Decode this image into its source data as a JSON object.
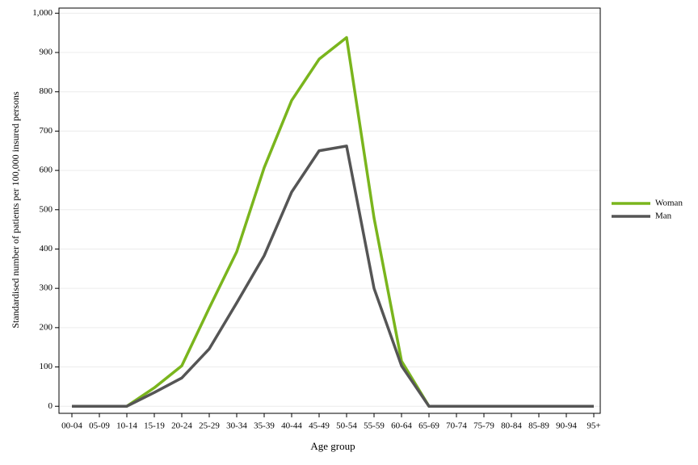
{
  "chart_data": {
    "type": "line",
    "x_label": "Age group",
    "y_label": "Standardised number of patients per 100,000 insured persons",
    "categories": [
      "00-04",
      "05-09",
      "10-14",
      "15-19",
      "20-24",
      "25-29",
      "30-34",
      "35-39",
      "40-44",
      "45-49",
      "50-54",
      "55-59",
      "60-64",
      "65-69",
      "70-74",
      "75-79",
      "80-84",
      "85-89",
      "90-94",
      "95+"
    ],
    "series": [
      {
        "name": "Woman",
        "color": "#7ab51d",
        "values": [
          0,
          0,
          0,
          47,
          103,
          250,
          393,
          607,
          778,
          883,
          938,
          479,
          115,
          0,
          0,
          0,
          0,
          0,
          0,
          0
        ]
      },
      {
        "name": "Man",
        "color": "#555555",
        "values": [
          0,
          0,
          0,
          35,
          72,
          146,
          263,
          383,
          545,
          650,
          662,
          300,
          103,
          0,
          0,
          0,
          0,
          0,
          0,
          0
        ]
      }
    ],
    "ylim": [
      -18,
      1013
    ],
    "yticks": [
      0,
      100,
      200,
      300,
      400,
      500,
      600,
      700,
      800,
      900,
      {
        "value": 1000,
        "label": "1,000"
      }
    ],
    "grid": true,
    "legend": "right"
  }
}
